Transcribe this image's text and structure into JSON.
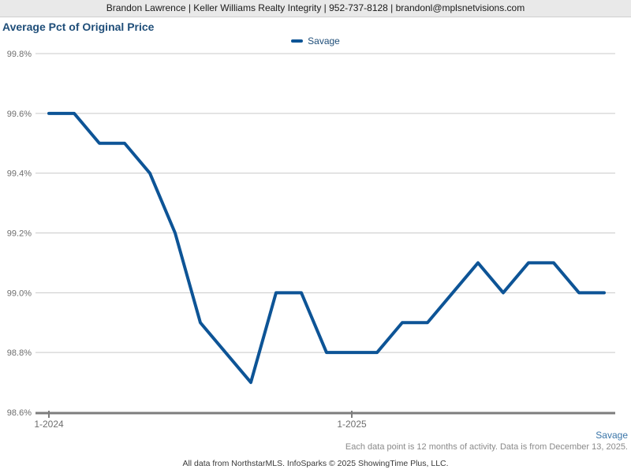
{
  "header": {
    "contact": "Brandon Lawrence | Keller Williams Realty Integrity | 952-737-8128 | brandonl@mplsnetvisions.com"
  },
  "title": "Average Pct of Original Price",
  "legend": {
    "label": "Savage"
  },
  "footer": {
    "series_label": "Savage",
    "note": "Each data point is 12 months of activity. Data is from December 13, 2025.",
    "attribution": "All data from NorthstarMLS. InfoSparks © 2025 ShowingTime Plus, LLC."
  },
  "colors": {
    "line": "#0d5496",
    "title-text": "#1f4e79",
    "legend-text": "#1f4e79",
    "footer-series": "#3a75a8",
    "note-text": "#8a8a8a",
    "attribution-text": "#3a3a3a",
    "axis-label": "#6e6e6e",
    "grid": "#c9c9c9",
    "axis": "#7d7d7d",
    "header-bg": "#e9e9e9",
    "header-text": "#1a1a1a",
    "header-border": "#d0d0d0"
  },
  "chart_data": {
    "type": "line",
    "title": "Average Pct of Original Price",
    "xlabel": "",
    "ylabel": "",
    "grid": true,
    "legend_position": "top-center",
    "ylim": [
      98.6,
      99.8
    ],
    "yticks": [
      98.6,
      98.8,
      99.0,
      99.2,
      99.4,
      99.6,
      99.8
    ],
    "ytick_labels": [
      "98.6%",
      "98.8%",
      "99.0%",
      "99.2%",
      "99.4%",
      "99.6%",
      "99.8%"
    ],
    "categories": [
      "1-2024",
      "2-2024",
      "3-2024",
      "4-2024",
      "5-2024",
      "6-2024",
      "7-2024",
      "8-2024",
      "9-2024",
      "10-2024",
      "11-2024",
      "12-2024",
      "1-2025",
      "2-2025",
      "3-2025",
      "4-2025",
      "5-2025",
      "6-2025",
      "7-2025",
      "8-2025",
      "9-2025",
      "10-2025",
      "11-2025"
    ],
    "x_tick_labels": [
      "1-2024",
      "1-2025"
    ],
    "x_tick_indices": [
      0,
      12
    ],
    "series": [
      {
        "name": "Savage",
        "color": "#0d5496",
        "values": [
          99.6,
          99.6,
          99.5,
          99.5,
          99.4,
          99.2,
          98.9,
          98.8,
          98.7,
          99.0,
          99.0,
          98.8,
          98.8,
          98.8,
          98.9,
          98.9,
          99.0,
          99.1,
          99.0,
          99.1,
          99.1,
          99.0,
          99.0
        ]
      }
    ]
  }
}
